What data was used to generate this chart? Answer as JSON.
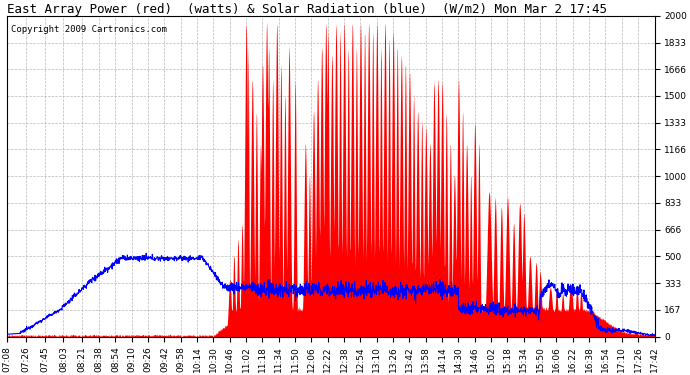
{
  "title": "East Array Power (red)  (watts) & Solar Radiation (blue)  (W/m2) Mon Mar 2 17:45",
  "copyright": "Copyright 2009 Cartronics.com",
  "background_color": "#ffffff",
  "plot_bg_color": "#ffffff",
  "grid_color": "#aaaaaa",
  "yticks": [
    0.0,
    166.6,
    333.3,
    499.9,
    666.5,
    833.1,
    999.8,
    1166.4,
    1333.0,
    1499.7,
    1666.3,
    1832.9,
    1999.6
  ],
  "ymax": 1999.6,
  "ymin": 0.0,
  "xtick_labels": [
    "07:08",
    "07:26",
    "07:45",
    "08:03",
    "08:21",
    "08:38",
    "08:54",
    "09:10",
    "09:26",
    "09:42",
    "09:58",
    "10:14",
    "10:30",
    "10:46",
    "11:02",
    "11:18",
    "11:34",
    "11:50",
    "12:06",
    "12:22",
    "12:38",
    "12:54",
    "13:10",
    "13:26",
    "13:42",
    "13:58",
    "14:14",
    "14:30",
    "14:46",
    "15:02",
    "15:18",
    "15:34",
    "15:50",
    "16:06",
    "16:22",
    "16:38",
    "16:54",
    "17:10",
    "17:26",
    "17:42"
  ],
  "red_color": "#ff0000",
  "blue_color": "#0000ff",
  "title_fontsize": 9,
  "copyright_fontsize": 6.5,
  "tick_fontsize": 6.5
}
